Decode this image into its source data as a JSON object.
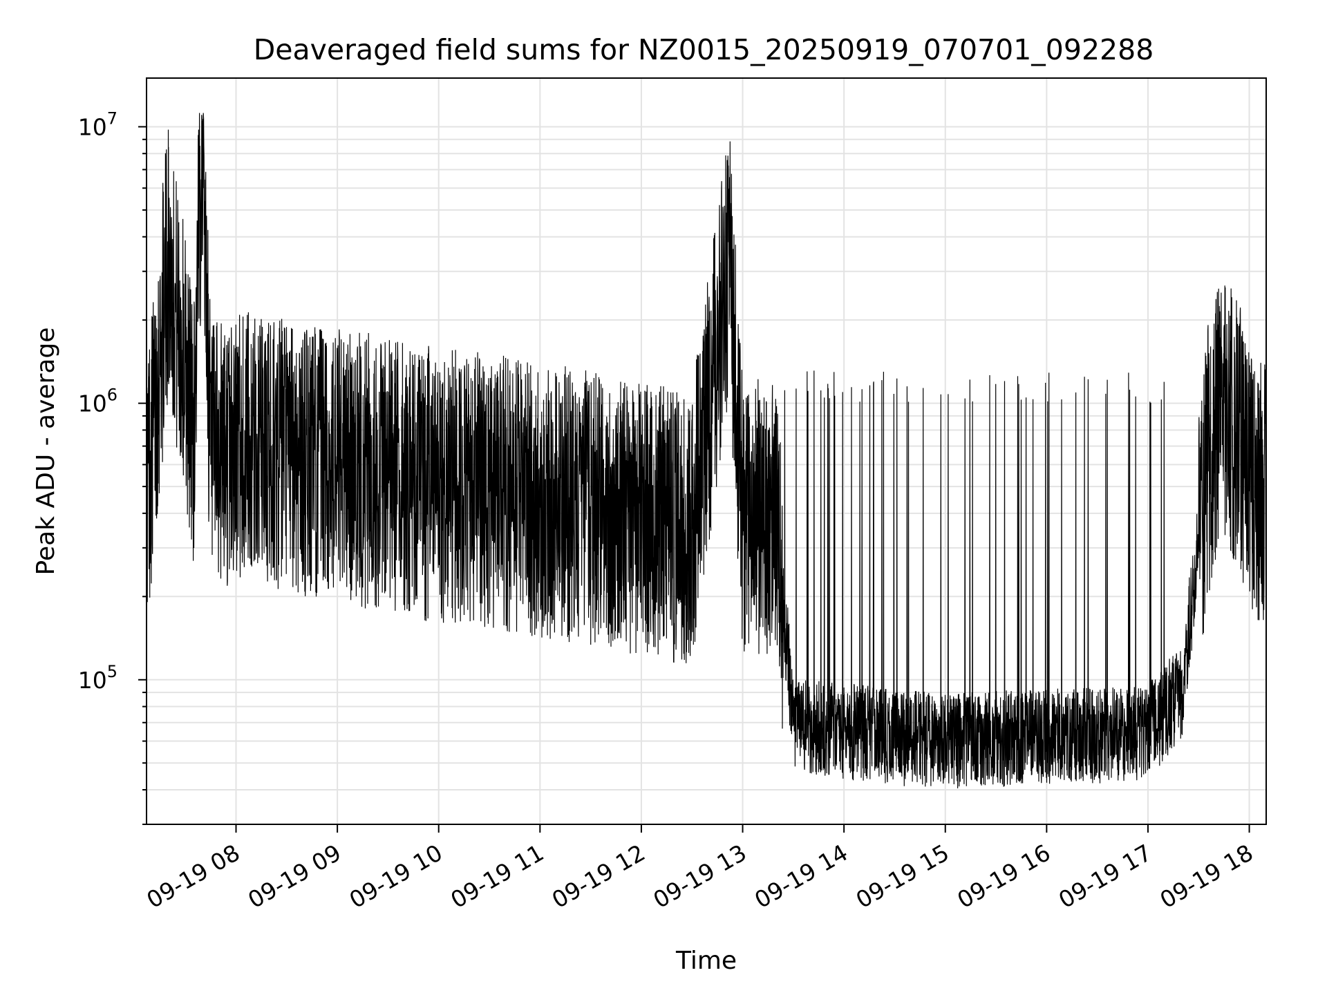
{
  "chart_data": {
    "type": "line",
    "title": "Deaveraged field sums for NZ0015_20250919_070701_092288",
    "xlabel": "Time",
    "ylabel": "Peak ADU - average",
    "x_scale": "time",
    "y_scale": "log",
    "xlim": [
      "2025-09-19 07:07",
      "2025-09-19 18:10"
    ],
    "ylim": [
      30000,
      15000000
    ],
    "x_ticks": [
      "09-19 08",
      "09-19 09",
      "09-19 10",
      "09-19 11",
      "09-19 12",
      "09-19 13",
      "09-19 14",
      "09-19 15",
      "09-19 16",
      "09-19 17",
      "09-19 18"
    ],
    "x_tick_values": [
      "2025-09-19 08:00",
      "2025-09-19 09:00",
      "2025-09-19 10:00",
      "2025-09-19 11:00",
      "2025-09-19 12:00",
      "2025-09-19 13:00",
      "2025-09-19 14:00",
      "2025-09-19 15:00",
      "2025-09-19 16:00",
      "2025-09-19 17:00",
      "2025-09-19 18:00"
    ],
    "y_ticks": [
      {
        "base": "10",
        "exp": "5",
        "value": 100000
      },
      {
        "base": "10",
        "exp": "6",
        "value": 1000000
      },
      {
        "base": "10",
        "exp": "7",
        "value": 10000000
      }
    ],
    "grid": true,
    "line_color": "#000000",
    "series": [
      {
        "x": [
          "2025-09-19 07:07",
          "2025-09-19 07:10",
          "2025-09-19 07:15",
          "2025-09-19 07:20",
          "2025-09-19 07:25",
          "2025-09-19 07:30",
          "2025-09-19 07:35",
          "2025-09-19 07:40",
          "2025-09-19 07:45",
          "2025-09-19 08:00",
          "2025-09-19 08:30",
          "2025-09-19 09:00",
          "2025-09-19 09:30",
          "2025-09-19 10:00",
          "2025-09-19 10:30",
          "2025-09-19 11:00",
          "2025-09-19 11:30",
          "2025-09-19 12:00",
          "2025-09-19 12:30",
          "2025-09-19 12:52",
          "2025-09-19 13:00",
          "2025-09-19 13:20",
          "2025-09-19 13:30",
          "2025-09-19 14:00",
          "2025-09-19 14:30",
          "2025-09-19 15:00",
          "2025-09-19 15:30",
          "2025-09-19 16:00",
          "2025-09-19 16:30",
          "2025-09-19 17:00",
          "2025-09-19 17:20",
          "2025-09-19 17:35",
          "2025-09-19 17:45",
          "2025-09-19 17:55",
          "2025-09-19 18:05",
          "2025-09-19 18:10"
        ],
        "y": [
          500000,
          700000,
          1500000,
          3500000,
          2000000,
          1400000,
          800000,
          10500000,
          600000,
          700000,
          650000,
          600000,
          550000,
          500000,
          480000,
          450000,
          420000,
          380000,
          350000,
          3300000,
          400000,
          380000,
          70000,
          65000,
          62000,
          60000,
          61000,
          62000,
          63000,
          65000,
          90000,
          600000,
          1000000,
          700000,
          500000,
          450000
        ]
      }
    ]
  }
}
